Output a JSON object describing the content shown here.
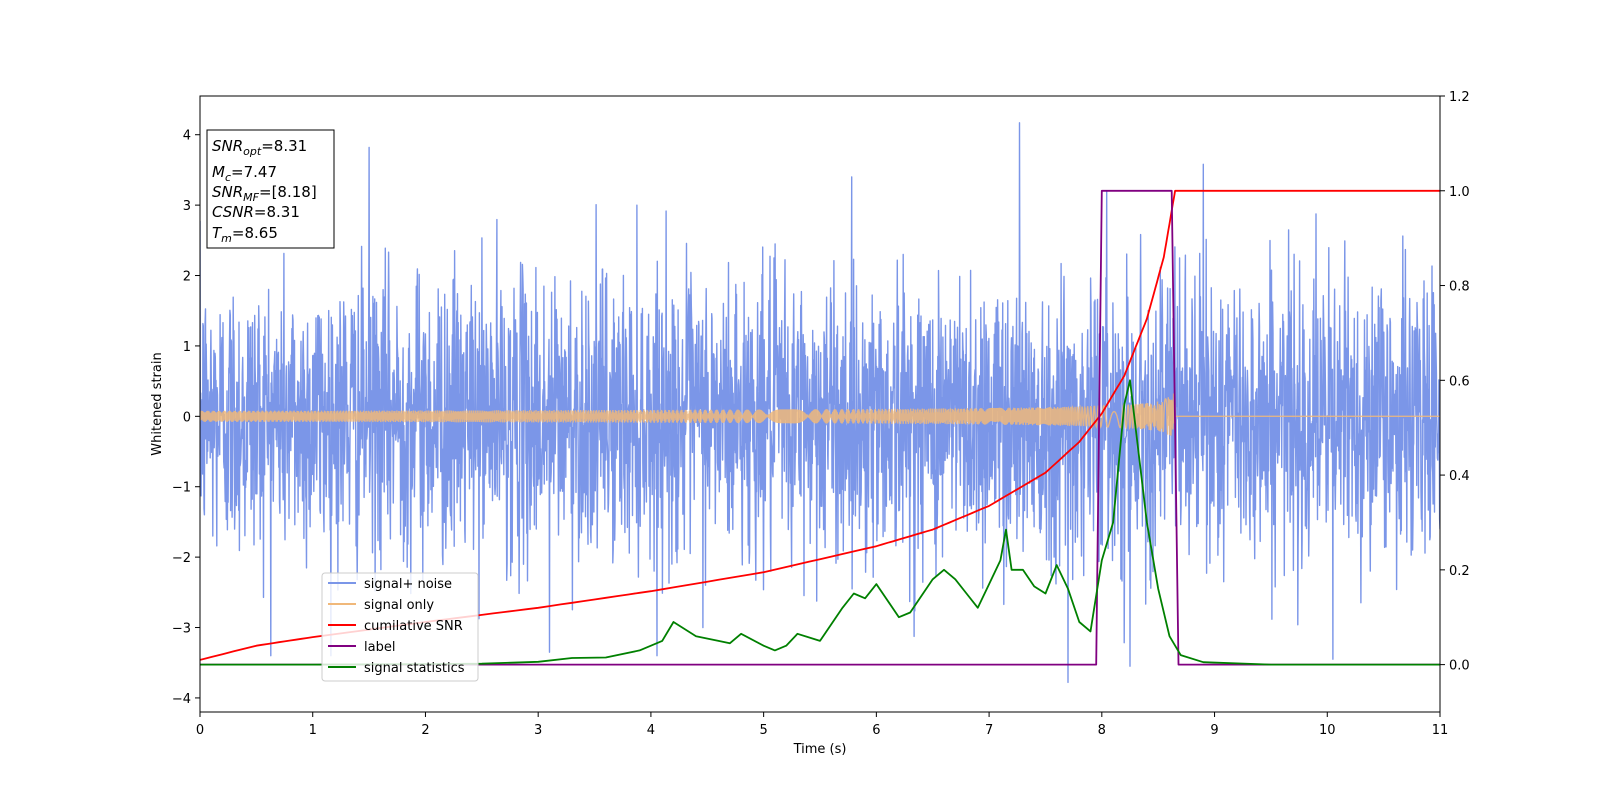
{
  "chart_data": {
    "type": "line",
    "xlabel": "Time (s)",
    "ylabel": "Whitened strain",
    "y2label": "",
    "xlim": [
      0,
      11
    ],
    "ylim": [
      -4.2,
      4.55
    ],
    "y2lim": [
      -0.1,
      1.2
    ],
    "xticks": [
      "0",
      "1",
      "2",
      "3",
      "4",
      "5",
      "6",
      "7",
      "8",
      "9",
      "10",
      "11"
    ],
    "yticks": [
      "−4",
      "−3",
      "−2",
      "−1",
      "0",
      "1",
      "2",
      "3",
      "4"
    ],
    "y2ticks": [
      "0.0",
      "0.2",
      "0.4",
      "0.6",
      "0.8",
      "1.0",
      "1.2"
    ],
    "grid": false,
    "legend_placement": "lower-left",
    "info_box": {
      "snr_opt": {
        "sym": "SNR",
        "sub": "opt",
        "value": "=8.31"
      },
      "mc": {
        "sym": "M",
        "sub": "c",
        "value": "=7.47"
      },
      "snr_mf": {
        "sym": "SNR",
        "sub": "MF",
        "value": "=[8.18]"
      },
      "csnr": {
        "sym": "CSNR",
        "sub": "",
        "value": "=8.31"
      },
      "tm": {
        "sym": "T",
        "sub": "m",
        "value": "=8.65"
      }
    },
    "series": [
      {
        "name": "signal+ noise",
        "axis": "left",
        "color": "#7b96e8",
        "description_only": "noisy whitened strain",
        "noise_std": 1.0,
        "peaks": [
          [
            7.27,
            4.17
          ],
          [
            1.5,
            3.82
          ],
          [
            8.9,
            3.58
          ],
          [
            7.7,
            -3.78
          ],
          [
            8.25,
            -3.55
          ],
          [
            3.1,
            -3.35
          ],
          [
            10.05,
            -3.45
          ]
        ]
      },
      {
        "name": "signal only",
        "axis": "left",
        "color": "#f0b87a",
        "chirp_end": 8.65,
        "amplitude_end": 0.65,
        "amplitude_start": 0.05
      },
      {
        "name": "cumilative SNR",
        "axis": "right",
        "color": "#ff0000",
        "x": [
          0,
          0.5,
          1,
          2,
          3,
          4,
          5,
          6,
          6.5,
          7,
          7.5,
          7.8,
          8,
          8.2,
          8.4,
          8.55,
          8.65,
          11
        ],
        "y": [
          0.01,
          0.04,
          0.058,
          0.09,
          0.12,
          0.155,
          0.195,
          0.25,
          0.285,
          0.335,
          0.405,
          0.47,
          0.53,
          0.61,
          0.73,
          0.86,
          1.0,
          1.0
        ]
      },
      {
        "name": "label",
        "axis": "right",
        "color": "#800080",
        "x": [
          0,
          7.95,
          8.0,
          8.62,
          8.68,
          11
        ],
        "y": [
          0,
          0,
          1,
          1,
          0,
          0
        ]
      },
      {
        "name": "signal statistics",
        "axis": "right",
        "color": "#008000",
        "x": [
          0,
          1,
          2,
          2.5,
          3,
          3.3,
          3.6,
          3.9,
          4.1,
          4.2,
          4.4,
          4.6,
          4.7,
          4.8,
          5.0,
          5.1,
          5.2,
          5.3,
          5.5,
          5.7,
          5.8,
          5.9,
          6.0,
          6.2,
          6.3,
          6.5,
          6.6,
          6.7,
          6.8,
          6.9,
          7.0,
          7.1,
          7.15,
          7.2,
          7.3,
          7.4,
          7.5,
          7.6,
          7.7,
          7.8,
          7.9,
          8.0,
          8.1,
          8.2,
          8.25,
          8.3,
          8.4,
          8.5,
          8.6,
          8.7,
          8.9,
          9.5,
          11
        ],
        "y": [
          0.0,
          0.0,
          0.001,
          0.002,
          0.006,
          0.014,
          0.015,
          0.03,
          0.05,
          0.09,
          0.06,
          0.05,
          0.045,
          0.065,
          0.04,
          0.03,
          0.04,
          0.065,
          0.05,
          0.12,
          0.15,
          0.14,
          0.17,
          0.1,
          0.11,
          0.18,
          0.2,
          0.18,
          0.15,
          0.12,
          0.17,
          0.22,
          0.285,
          0.2,
          0.2,
          0.165,
          0.15,
          0.21,
          0.16,
          0.09,
          0.07,
          0.22,
          0.3,
          0.55,
          0.6,
          0.5,
          0.3,
          0.16,
          0.06,
          0.02,
          0.005,
          0.0,
          0.0
        ]
      }
    ]
  }
}
